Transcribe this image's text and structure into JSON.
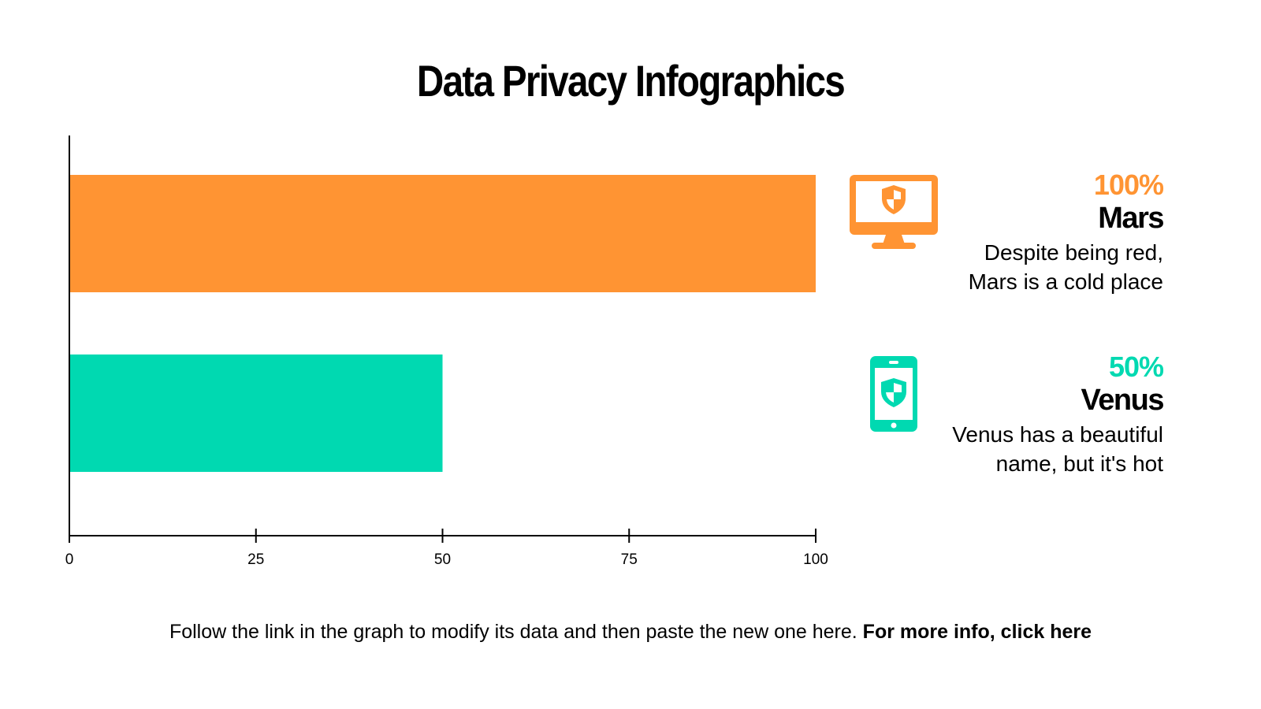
{
  "title": "Data Privacy Infographics",
  "colors": {
    "mars": "#FF9433",
    "venus": "#00D9B1",
    "axis": "#000000"
  },
  "chart_data": {
    "type": "bar",
    "orientation": "horizontal",
    "categories": [
      "Mars",
      "Venus"
    ],
    "values": [
      100,
      50
    ],
    "xlim": [
      0,
      100
    ],
    "xticks": [
      "0",
      "25",
      "50",
      "75",
      "100"
    ],
    "grid": false
  },
  "items": [
    {
      "percent": "100%",
      "name": "Mars",
      "desc1": "Despite being red,",
      "desc2": "Mars is a cold place",
      "icon": "monitor-shield-icon"
    },
    {
      "percent": "50%",
      "name": "Venus",
      "desc1": "Venus has a beautiful",
      "desc2": "name, but it's hot",
      "icon": "smartphone-shield-icon"
    }
  ],
  "footer": {
    "text": "Follow the link in the graph to modify its data and then paste the new one here. ",
    "link": "For more info, click here"
  }
}
